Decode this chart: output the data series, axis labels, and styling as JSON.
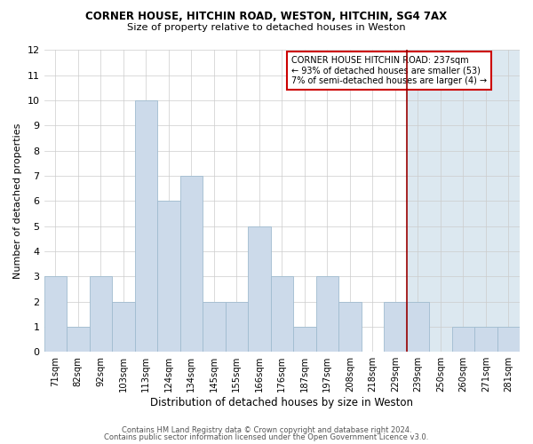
{
  "title1": "CORNER HOUSE, HITCHIN ROAD, WESTON, HITCHIN, SG4 7AX",
  "title2": "Size of property relative to detached houses in Weston",
  "xlabel": "Distribution of detached houses by size in Weston",
  "ylabel": "Number of detached properties",
  "categories": [
    "71sqm",
    "82sqm",
    "92sqm",
    "103sqm",
    "113sqm",
    "124sqm",
    "134sqm",
    "145sqm",
    "155sqm",
    "166sqm",
    "176sqm",
    "187sqm",
    "197sqm",
    "208sqm",
    "218sqm",
    "229sqm",
    "239sqm",
    "250sqm",
    "260sqm",
    "271sqm",
    "281sqm"
  ],
  "values": [
    3,
    1,
    3,
    2,
    10,
    6,
    7,
    2,
    2,
    5,
    3,
    1,
    3,
    2,
    0,
    2,
    2,
    0,
    1,
    1,
    1
  ],
  "bar_color": "#ccdaea",
  "bar_edge_color": "#a0bcd0",
  "highlight_index": 16,
  "highlight_color": "#990000",
  "annotation_text": "CORNER HOUSE HITCHIN ROAD: 237sqm\n← 93% of detached houses are smaller (53)\n7% of semi-detached houses are larger (4) →",
  "annotation_box_color": "white",
  "annotation_box_edge": "#cc0000",
  "ylim": [
    0,
    12
  ],
  "yticks": [
    0,
    1,
    2,
    3,
    4,
    5,
    6,
    7,
    8,
    9,
    10,
    11,
    12
  ],
  "footer1": "Contains HM Land Registry data © Crown copyright and database right 2024.",
  "footer2": "Contains public sector information licensed under the Open Government Licence v3.0.",
  "bg_right_color": "#dce8f0"
}
